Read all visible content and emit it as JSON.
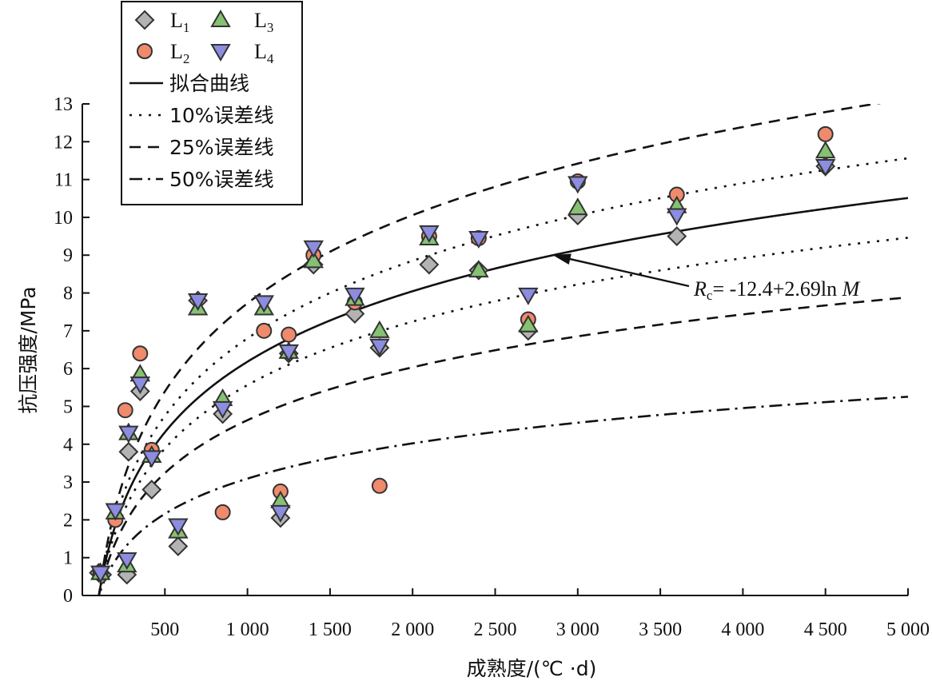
{
  "chart_data": {
    "type": "scatter",
    "xlabel": "成熟度/(℃ ·d)",
    "ylabel": "抗压强度/MPa",
    "xlim": [
      0,
      5000
    ],
    "ylim": [
      0,
      13
    ],
    "x_ticks": [
      500,
      1000,
      1500,
      2000,
      2500,
      3000,
      3500,
      4000,
      4500,
      5000
    ],
    "x_tick_labels": [
      "500",
      "1 000",
      "1 500",
      "2 000",
      "2 500",
      "3 000",
      "3 500",
      "4 000",
      "4 500",
      "5 000"
    ],
    "y_ticks": [
      0,
      1,
      2,
      3,
      4,
      5,
      6,
      7,
      8,
      9,
      10,
      11,
      12,
      13
    ],
    "y_tick_labels": [
      "0",
      "1",
      "2",
      "3",
      "4",
      "5",
      "6",
      "7",
      "8",
      "9",
      "10",
      "11",
      "12",
      "13"
    ],
    "legend_position": "top-left",
    "legend": [
      {
        "key": "L1",
        "base": "L",
        "sub": "1",
        "marker": "diamond"
      },
      {
        "key": "L2",
        "base": "L",
        "sub": "2",
        "marker": "circle"
      },
      {
        "key": "L3",
        "base": "L",
        "sub": "3",
        "marker": "triangle-up"
      },
      {
        "key": "L4",
        "base": "L",
        "sub": "4",
        "marker": "triangle-down"
      },
      {
        "key": "fit",
        "label": "拟合曲线",
        "dash": "solid"
      },
      {
        "key": "e10",
        "label": "10%误差线",
        "dash": "dotted"
      },
      {
        "key": "e25",
        "label": "25%误差线",
        "dash": "dashed"
      },
      {
        "key": "e50",
        "label": "50%误差线",
        "dash": "dashdot"
      }
    ],
    "series": [
      {
        "name": "L1",
        "marker": "diamond",
        "x": [
          100,
          120,
          270,
          280,
          350,
          420,
          580,
          700,
          850,
          1200,
          1250,
          1400,
          1650,
          1800,
          2100,
          2400,
          2700,
          3000,
          3600,
          4500
        ],
        "y": [
          0.6,
          0.55,
          0.55,
          3.8,
          5.4,
          2.8,
          1.3,
          7.8,
          4.8,
          2.05,
          6.4,
          8.75,
          7.45,
          6.55,
          8.75,
          8.6,
          7.0,
          10.05,
          9.5,
          11.35
        ]
      },
      {
        "name": "L2",
        "marker": "circle",
        "x": [
          110,
          200,
          260,
          350,
          420,
          850,
          1100,
          1200,
          1250,
          1400,
          1650,
          1800,
          2100,
          2400,
          2700,
          3000,
          3600,
          4500
        ],
        "y": [
          0.6,
          2.0,
          4.9,
          6.4,
          3.85,
          2.2,
          7.0,
          2.75,
          6.9,
          9.0,
          7.75,
          2.9,
          9.5,
          9.45,
          7.3,
          10.95,
          10.6,
          12.2
        ]
      },
      {
        "name": "L3",
        "marker": "triangle-up",
        "x": [
          110,
          200,
          270,
          280,
          350,
          420,
          580,
          700,
          850,
          1100,
          1200,
          1250,
          1400,
          1650,
          1800,
          2100,
          2400,
          2700,
          3000,
          3600,
          4500
        ],
        "y": [
          0.6,
          2.2,
          0.8,
          4.3,
          5.85,
          3.7,
          1.7,
          7.6,
          5.2,
          7.6,
          2.5,
          6.45,
          8.85,
          7.85,
          7.0,
          9.45,
          8.6,
          7.15,
          10.25,
          10.3,
          11.75
        ]
      },
      {
        "name": "L4",
        "marker": "triangle-down",
        "x": [
          110,
          200,
          270,
          280,
          350,
          420,
          580,
          700,
          850,
          1100,
          1200,
          1250,
          1400,
          1650,
          1800,
          2100,
          2400,
          2700,
          3000,
          3600,
          4500
        ],
        "y": [
          0.6,
          2.25,
          0.95,
          4.3,
          5.6,
          3.65,
          1.85,
          7.8,
          4.95,
          7.75,
          2.2,
          6.45,
          9.2,
          7.95,
          6.6,
          9.6,
          9.45,
          7.95,
          10.9,
          10.05,
          11.35
        ]
      }
    ],
    "fit": {
      "equation": "R_c = -12.4+2.69ln M",
      "a": -12.4,
      "b": 2.69
    },
    "error_bands": [
      {
        "name": "10%误差线",
        "factors": [
          1.1,
          0.9
        ],
        "dash": "dotted"
      },
      {
        "name": "25%误差线",
        "factors": [
          1.25,
          0.75
        ],
        "dash": "dashed"
      },
      {
        "name": "50%误差线",
        "factors": [
          0.5
        ],
        "dash": "dashdot"
      }
    ],
    "annotation": {
      "prefix": "R",
      "sub": "c",
      "text": "= -12.4+2.69ln ",
      "var": "M",
      "arrow_to_x": 2850
    }
  },
  "colors": {
    "L1": "#b3b3b3",
    "L2": "#f08a6c",
    "L3": "#86c173",
    "L4": "#8c8ce0",
    "stroke": "#333333",
    "line": "#111111"
  }
}
